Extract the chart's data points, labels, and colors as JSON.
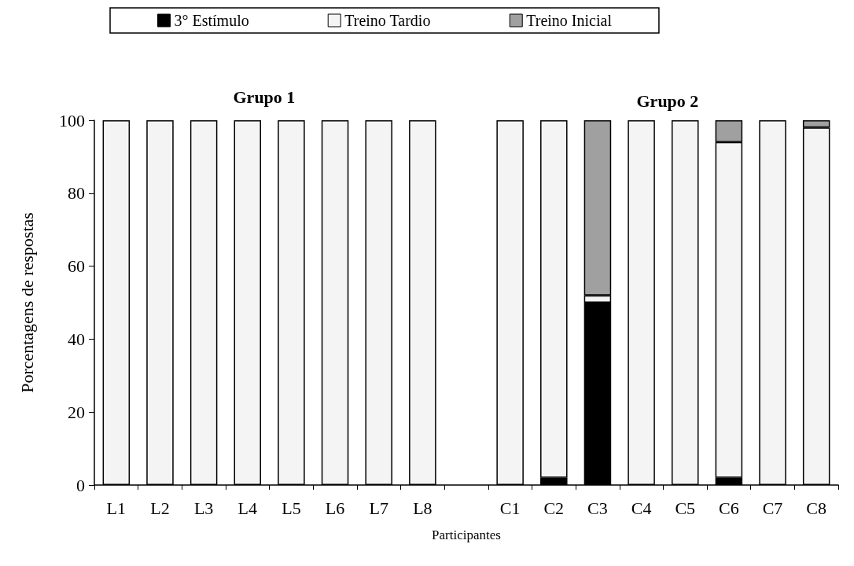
{
  "chart_data": {
    "type": "bar",
    "stacked": true,
    "ylabel": "Porcentagens de respostas",
    "xlabel": "Participantes",
    "annotations": [
      "Grupo 1",
      "Grupo 2"
    ],
    "categories": [
      "L1",
      "L2",
      "L3",
      "L4",
      "L5",
      "L6",
      "L7",
      "L8",
      null,
      "C1",
      "C2",
      "C3",
      "C4",
      "C5",
      "C6",
      "C7",
      "C8"
    ],
    "series": [
      {
        "name": "3° Estímulo",
        "color": "#000000",
        "values": [
          0,
          0,
          0,
          0,
          0,
          0,
          0,
          0,
          null,
          0,
          2,
          50,
          0,
          0,
          2,
          0,
          0
        ]
      },
      {
        "name": "Treino Tardio",
        "color": "#f4f4f4",
        "values": [
          100,
          100,
          100,
          100,
          100,
          100,
          100,
          100,
          null,
          100,
          98,
          2,
          100,
          100,
          92,
          100,
          98
        ]
      },
      {
        "name": "Treino Inicial",
        "color": "#a0a0a0",
        "values": [
          0,
          0,
          0,
          0,
          0,
          0,
          0,
          0,
          null,
          0,
          0,
          48,
          0,
          0,
          6,
          0,
          2
        ]
      }
    ],
    "ylim": [
      0,
      100
    ],
    "yticks": [
      0,
      20,
      40,
      60,
      80,
      100
    ],
    "grid": false,
    "legend": "top"
  }
}
